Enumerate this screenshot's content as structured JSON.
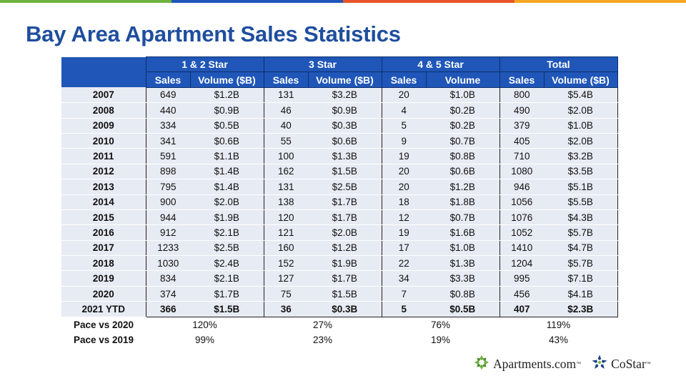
{
  "colors": {
    "title": "#1f4e9e",
    "header_bg": "#1f56b8",
    "row_bg": "#e7ebf3",
    "top_bar": [
      "#6db33f",
      "#1f56b8",
      "#e8542a",
      "#f5a623"
    ],
    "apartments_logo": "#6db33f",
    "costar_logo": "#1f3f86"
  },
  "title": "Bay Area Apartment Sales Statistics",
  "table": {
    "groups": [
      "1 & 2 Star",
      "3 Star",
      "4 & 5 Star",
      "Total"
    ],
    "subheaders": [
      "Sales",
      "Volume ($B)",
      "Sales",
      "Volume ($B)",
      "Sales",
      "Volume",
      "Sales",
      "Volume ($B)"
    ],
    "rows": [
      {
        "label": "2007",
        "cells": [
          "649",
          "$1.2B",
          "131",
          "$3.2B",
          "20",
          "$1.0B",
          "800",
          "$5.4B"
        ]
      },
      {
        "label": "2008",
        "cells": [
          "440",
          "$0.9B",
          "46",
          "$0.9B",
          "4",
          "$0.2B",
          "490",
          "$2.0B"
        ]
      },
      {
        "label": "2009",
        "cells": [
          "334",
          "$0.5B",
          "40",
          "$0.3B",
          "5",
          "$0.2B",
          "379",
          "$1.0B"
        ]
      },
      {
        "label": "2010",
        "cells": [
          "341",
          "$0.6B",
          "55",
          "$0.6B",
          "9",
          "$0.7B",
          "405",
          "$2.0B"
        ]
      },
      {
        "label": "2011",
        "cells": [
          "591",
          "$1.1B",
          "100",
          "$1.3B",
          "19",
          "$0.8B",
          "710",
          "$3.2B"
        ]
      },
      {
        "label": "2012",
        "cells": [
          "898",
          "$1.4B",
          "162",
          "$1.5B",
          "20",
          "$0.6B",
          "1080",
          "$3.5B"
        ]
      },
      {
        "label": "2013",
        "cells": [
          "795",
          "$1.4B",
          "131",
          "$2.5B",
          "20",
          "$1.2B",
          "946",
          "$5.1B"
        ]
      },
      {
        "label": "2014",
        "cells": [
          "900",
          "$2.0B",
          "138",
          "$1.7B",
          "18",
          "$1.8B",
          "1056",
          "$5.5B"
        ]
      },
      {
        "label": "2015",
        "cells": [
          "944",
          "$1.9B",
          "120",
          "$1.7B",
          "12",
          "$0.7B",
          "1076",
          "$4.3B"
        ]
      },
      {
        "label": "2016",
        "cells": [
          "912",
          "$2.1B",
          "121",
          "$2.0B",
          "19",
          "$1.6B",
          "1052",
          "$5.7B"
        ]
      },
      {
        "label": "2017",
        "cells": [
          "1233",
          "$2.5B",
          "160",
          "$1.2B",
          "17",
          "$1.0B",
          "1410",
          "$4.7B"
        ]
      },
      {
        "label": "2018",
        "cells": [
          "1030",
          "$2.4B",
          "152",
          "$1.9B",
          "22",
          "$1.3B",
          "1204",
          "$5.7B"
        ]
      },
      {
        "label": "2019",
        "cells": [
          "834",
          "$2.1B",
          "127",
          "$1.7B",
          "34",
          "$3.3B",
          "995",
          "$7.1B"
        ]
      },
      {
        "label": "2020",
        "cells": [
          "374",
          "$1.7B",
          "75",
          "$1.5B",
          "7",
          "$0.8B",
          "456",
          "$4.1B"
        ]
      },
      {
        "label": "2021 YTD",
        "cells": [
          "366",
          "$1.5B",
          "36",
          "$0.3B",
          "5",
          "$0.5B",
          "407",
          "$2.3B"
        ]
      }
    ],
    "pace_rows": [
      {
        "label": "Pace vs 2020",
        "values": [
          "120%",
          "27%",
          "76%",
          "119%"
        ]
      },
      {
        "label": "Pace vs 2019",
        "values": [
          "99%",
          "23%",
          "19%",
          "43%"
        ]
      }
    ]
  },
  "logos": {
    "apartments": {
      "text": "Apartments.com",
      "tm": "™",
      "icon": "apartments-pinwheel-icon"
    },
    "costar": {
      "text": "CoStar",
      "tm": "™",
      "icon": "costar-star-icon"
    }
  }
}
